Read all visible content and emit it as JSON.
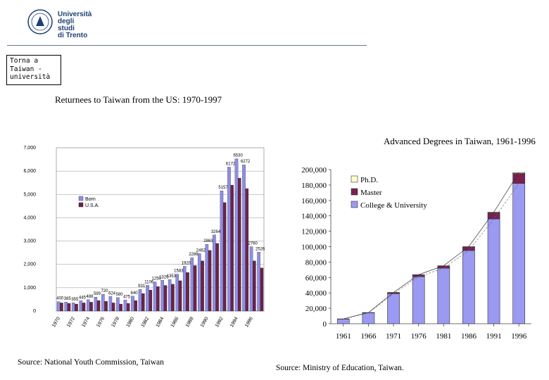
{
  "header": {
    "logo_line1": "Università",
    "logo_line2": "degli studi",
    "logo_line3": "di Trento",
    "note": "Torna a\nTaiwan -\nuniversità"
  },
  "colors": {
    "born": "#8e8ee6",
    "usa": "#6b2348",
    "phd": "#ffffcc",
    "master": "#7a2150",
    "college": "#9a9af2",
    "rule": "#5f7795"
  },
  "chart_data": [
    {
      "type": "bar",
      "title": "Returnees to Taiwan from the US: 1970-1997",
      "source": "Source: National Youth Commission, Taiwan",
      "categories": [
        "1970",
        "1971",
        "1972",
        "1973",
        "1974",
        "1975",
        "1976",
        "1977",
        "1978",
        "1979",
        "1980",
        "1981",
        "1982",
        "1983",
        "1984",
        "1985",
        "1986",
        "1987",
        "1988",
        "1989",
        "1990",
        "1991",
        "1992",
        "1993",
        "1994",
        "1995",
        "1996",
        "1997"
      ],
      "xtick_labels": [
        "1970",
        "1972",
        "1974",
        "1976",
        "1978",
        "1980",
        "1982",
        "1984",
        "1986",
        "1988",
        "1990",
        "1992",
        "1994",
        "1996"
      ],
      "ylim": [
        0,
        7000
      ],
      "yticks": [
        "0",
        "1,000",
        "2,000",
        "3,000",
        "4,000",
        "5,000",
        "6,000",
        "7,000"
      ],
      "legend": [
        "Born",
        "U.S.A."
      ],
      "series": [
        {
          "name": "Born",
          "values": [
            400,
            385,
            355,
            445,
            488,
            599,
            720,
            624,
            580,
            475,
            640,
            931,
            1106,
            1250,
            1320,
            1353,
            1583,
            1920,
            2286,
            2462,
            2863,
            3264,
            5157,
            6172,
            6530,
            6272,
            2760,
            2526
          ]
        },
        {
          "name": "U.S.A.",
          "values": [
            350,
            330,
            300,
            350,
            380,
            450,
            420,
            350,
            300,
            330,
            450,
            750,
            900,
            1050,
            1100,
            1150,
            1300,
            1650,
            1950,
            2150,
            2600,
            2900,
            4650,
            5400,
            5700,
            5250,
            2150,
            1850
          ]
        }
      ],
      "data_labels": [
        {
          "index": 0,
          "text": "400"
        },
        {
          "index": 1,
          "text": "385"
        },
        {
          "index": 2,
          "text": "355"
        },
        {
          "index": 3,
          "text": "445"
        },
        {
          "index": 4,
          "text": "488"
        },
        {
          "index": 5,
          "text": "599"
        },
        {
          "index": 6,
          "text": "720"
        },
        {
          "index": 7,
          "text": "624"
        },
        {
          "index": 8,
          "text": "580"
        },
        {
          "index": 9,
          "text": "475"
        },
        {
          "index": 10,
          "text": "640"
        },
        {
          "index": 11,
          "text": "931"
        },
        {
          "index": 12,
          "text": "1106"
        },
        {
          "index": 13,
          "text": "1250"
        },
        {
          "index": 14,
          "text": "1320"
        },
        {
          "index": 15,
          "text": "1353"
        },
        {
          "index": 16,
          "text": "1583"
        },
        {
          "index": 17,
          "text": "1920"
        },
        {
          "index": 18,
          "text": "2286"
        },
        {
          "index": 19,
          "text": "2462"
        },
        {
          "index": 20,
          "text": "2863"
        },
        {
          "index": 21,
          "text": "3264"
        },
        {
          "index": 22,
          "text": "5157"
        },
        {
          "index": 23,
          "text": "6172"
        },
        {
          "index": 24,
          "text": "6530"
        },
        {
          "index": 25,
          "text": "6272"
        },
        {
          "index": 26,
          "text": "2760"
        },
        {
          "index": 27,
          "text": "2526"
        }
      ]
    },
    {
      "type": "bar",
      "stacked": true,
      "title": "Advanced Degrees in Taiwan, 1961-1996",
      "source": "Source: Ministry of Education, Taiwan.",
      "categories": [
        "1961",
        "1966",
        "1971",
        "1976",
        "1981",
        "1986",
        "1991",
        "1996"
      ],
      "ylim": [
        0,
        200000
      ],
      "yticks": [
        "0",
        "20,000",
        "40,000",
        "60,000",
        "80,000",
        "100,000",
        "120,000",
        "140,000",
        "160,000",
        "180,000",
        "200,000"
      ],
      "legend": [
        "Ph.D.",
        "Master",
        "College & University"
      ],
      "series": [
        {
          "name": "College & University",
          "values": [
            6000,
            14000,
            39000,
            61000,
            72000,
            95000,
            136000,
            182000
          ]
        },
        {
          "name": "Master",
          "values": [
            300,
            500,
            1500,
            2500,
            3000,
            4500,
            8000,
            13000
          ]
        },
        {
          "name": "Ph.D.",
          "values": [
            0,
            0,
            50,
            100,
            200,
            500,
            700,
            1200
          ]
        }
      ]
    }
  ]
}
